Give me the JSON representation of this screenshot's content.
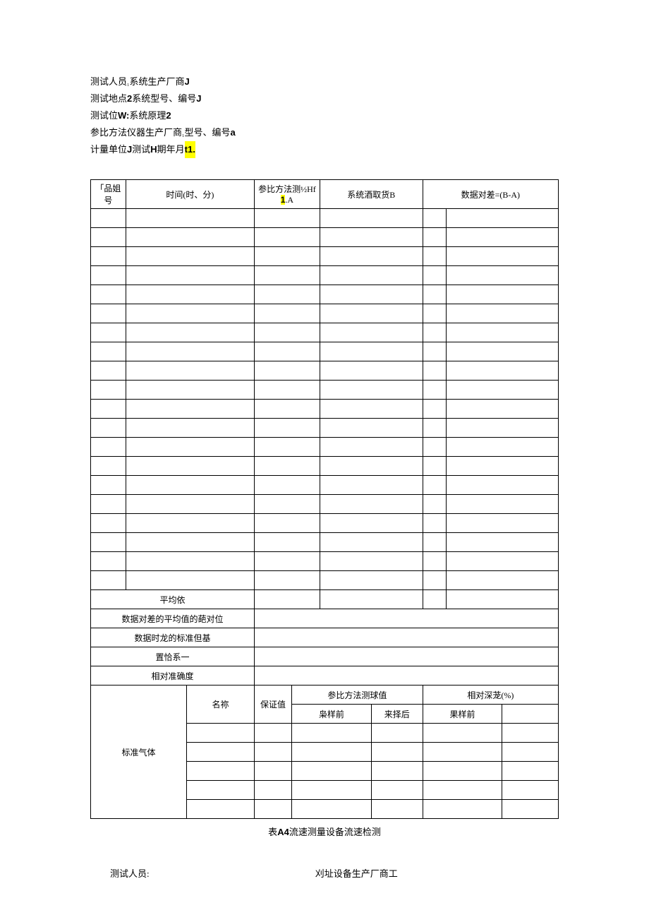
{
  "header": {
    "lines": [
      {
        "parts": [
          {
            "t": "测试人员",
            "b": false
          },
          {
            "t": "₁",
            "b": false,
            "sub": true
          },
          {
            "t": "系统生产厂商",
            "b": false
          },
          {
            "t": "J",
            "b": true
          }
        ]
      },
      {
        "parts": [
          {
            "t": "测试地点",
            "b": false
          },
          {
            "t": "2",
            "b": true
          },
          {
            "t": "系统型号、编号",
            "b": false
          },
          {
            "t": "J",
            "b": true
          }
        ]
      },
      {
        "parts": [
          {
            "t": "测试位",
            "b": false
          },
          {
            "t": "W:",
            "b": true
          },
          {
            "t": "系统原理",
            "b": false
          },
          {
            "t": "2",
            "b": true
          }
        ]
      },
      {
        "parts": [
          {
            "t": "参比方法仪器生产厂商",
            "b": false
          },
          {
            "t": "₁",
            "b": false,
            "sub": true
          },
          {
            "t": "型号、编号",
            "b": false
          },
          {
            "t": "a",
            "b": true
          }
        ]
      },
      {
        "parts": [
          {
            "t": "计量单位",
            "b": false
          },
          {
            "t": "J",
            "b": true
          },
          {
            "t": "测试",
            "b": false
          },
          {
            "t": "H",
            "b": true
          },
          {
            "t": "期年月",
            "b": false
          },
          {
            "t": "t",
            "b": true,
            "hl": true
          },
          {
            "t": "1.",
            "b": true,
            "hl": true
          }
        ]
      }
    ]
  },
  "table1": {
    "headers": {
      "c1": "「品姐号",
      "c2": "时间(时、分)",
      "c3_pre": "参比方法测½Hf",
      "c3_hl": "1",
      "c3_post": ".A",
      "c4": "系统酒取货B",
      "c5": "数据对差=(B-A)"
    },
    "summary": {
      "r1": "平均依",
      "r2": "数据对差的平均值的葩对位",
      "r3": "数据时龙的标准但基",
      "r4": "置恰系一",
      "r5": "相对准确度"
    },
    "stdgas": {
      "label": "标准气体",
      "name": "名祢",
      "guar": "保证值",
      "refval": "参比方法测球值",
      "reldep": "相对深茏(%)",
      "before1": "枭样前",
      "after1": "来择后",
      "before2": "果样前"
    }
  },
  "caption": {
    "pre": "表",
    "bold": "A4",
    "post": "流速测量设备流速检测"
  },
  "footer": {
    "left": "测试人员:",
    "right": "刈址设备生产厂商工"
  }
}
